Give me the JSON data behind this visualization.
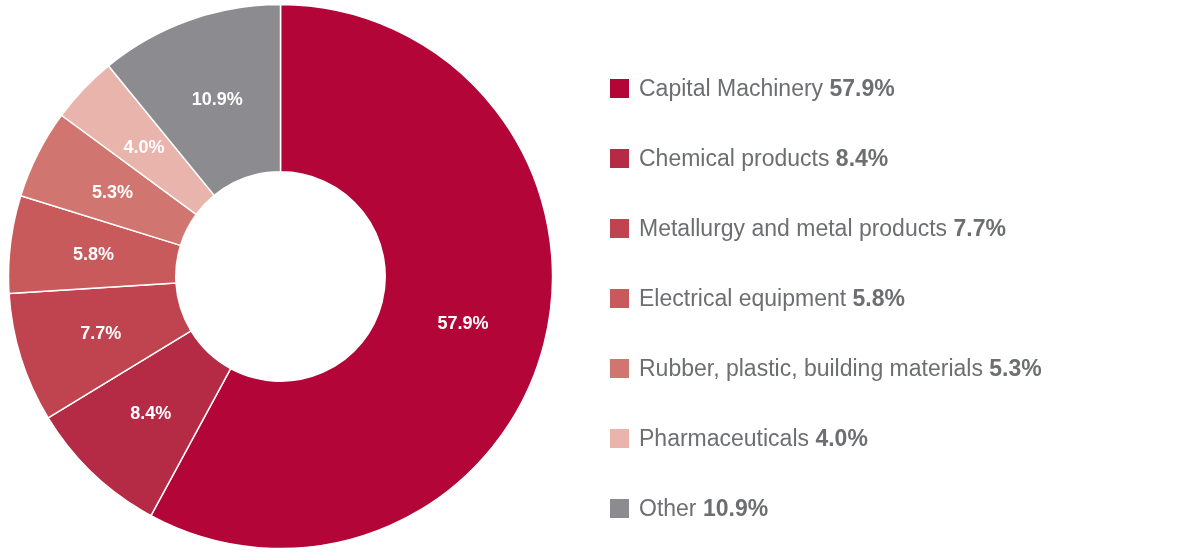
{
  "chart_data": {
    "type": "donut",
    "categories": [
      "Capital Machinery",
      "Chemical products",
      "Metallurgy and metal products",
      "Electrical equipment",
      "Rubber, plastic, building materials",
      "Pharmaceuticals",
      "Other"
    ],
    "values": [
      57.9,
      8.4,
      7.7,
      5.8,
      5.3,
      4.0,
      10.9
    ],
    "value_labels": [
      "57.9%",
      "8.4%",
      "7.7%",
      "5.8%",
      "5.3%",
      "4.0%",
      "10.9%"
    ],
    "colors": [
      "#b30537",
      "#b52a44",
      "#c0444f",
      "#c85a5c",
      "#d07570",
      "#e8b4ac",
      "#8c8b90"
    ],
    "legend": "right"
  }
}
